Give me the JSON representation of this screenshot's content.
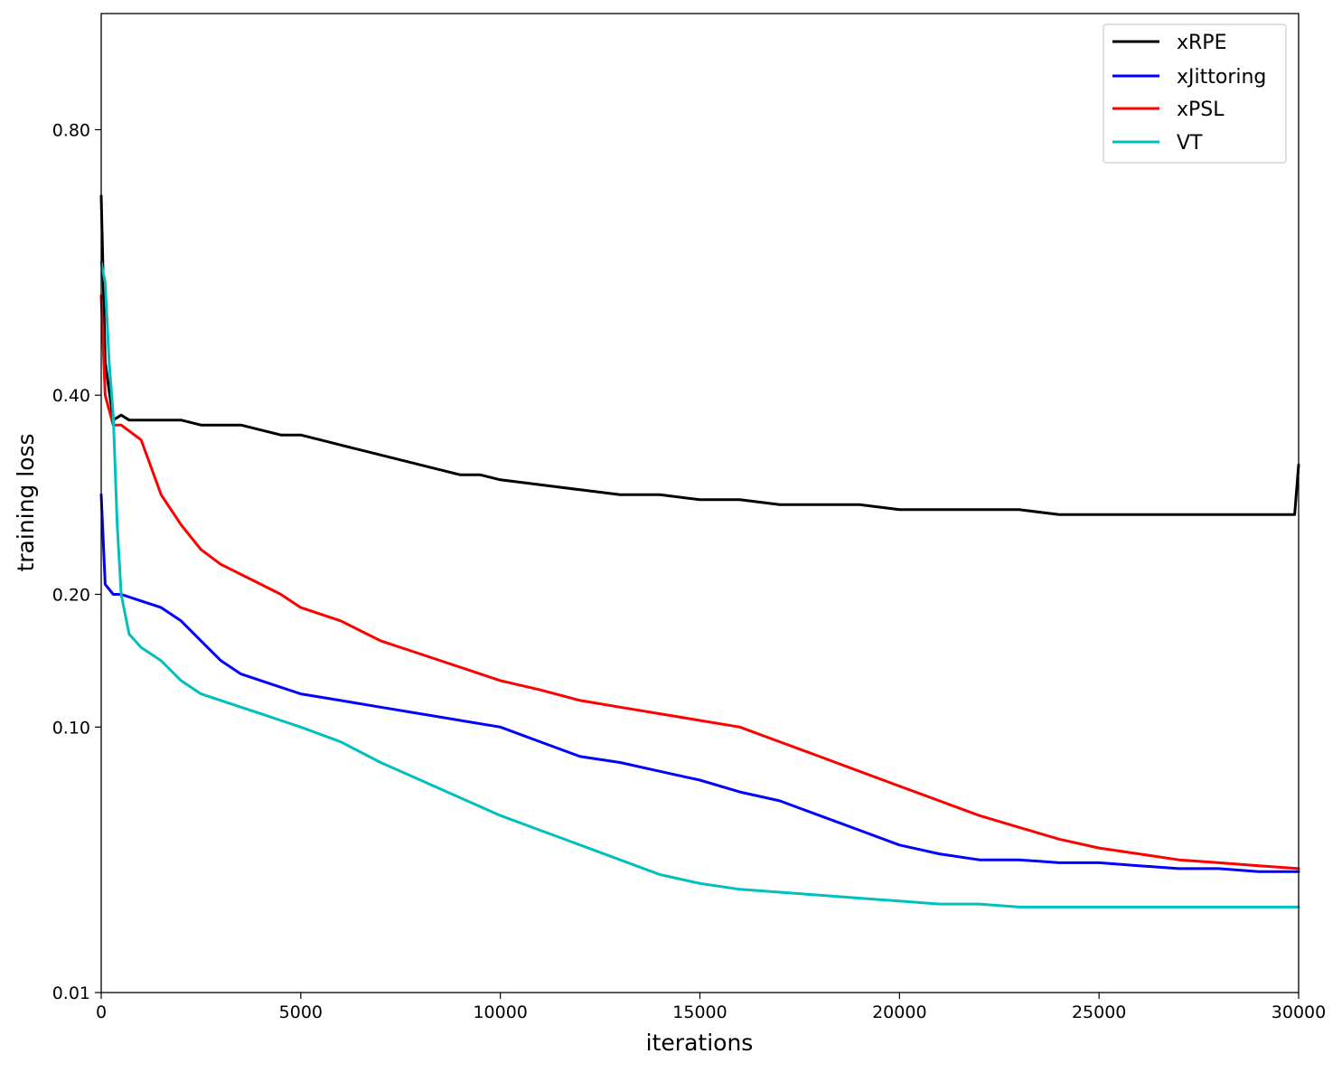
{
  "chart_data": {
    "type": "line",
    "title": "",
    "xlabel": "iterations",
    "ylabel": "training loss",
    "xlim": [
      0,
      30000
    ],
    "y_scale": "piecewise-linear",
    "y_scale_breaks": [
      [
        0.01,
        0.0
      ],
      [
        0.1,
        0.5
      ],
      [
        0.2,
        0.75
      ],
      [
        0.4,
        1.125
      ],
      [
        0.8,
        1.625
      ]
    ],
    "ylim": [
      0.01,
      0.975
    ],
    "x_ticks": [
      0,
      5000,
      10000,
      15000,
      20000,
      25000,
      30000
    ],
    "x_tick_labels": [
      "0",
      "5000",
      "10000",
      "15000",
      "20000",
      "25000",
      "30000"
    ],
    "y_ticks": [
      0.01,
      0.1,
      0.2,
      0.4,
      0.8
    ],
    "y_tick_labels": [
      "0.01",
      "0.10",
      "0.20",
      "0.40",
      "0.80"
    ],
    "grid": false,
    "legend_position": "top-right",
    "series": [
      {
        "name": "xRPE",
        "color": "#000000",
        "x": [
          0,
          100,
          300,
          500,
          700,
          1000,
          1500,
          2000,
          2500,
          3000,
          3500,
          4000,
          4500,
          5000,
          5500,
          6000,
          6500,
          7000,
          7500,
          8000,
          8500,
          9000,
          9500,
          10000,
          11000,
          12000,
          13000,
          14000,
          15000,
          16000,
          17000,
          18000,
          19000,
          20000,
          21000,
          22000,
          23000,
          24000,
          25000,
          26000,
          27000,
          28000,
          29000,
          29900,
          30000
        ],
        "values": [
          0.7,
          0.45,
          0.375,
          0.38,
          0.375,
          0.375,
          0.375,
          0.375,
          0.37,
          0.37,
          0.37,
          0.365,
          0.36,
          0.36,
          0.355,
          0.35,
          0.345,
          0.34,
          0.335,
          0.33,
          0.325,
          0.32,
          0.32,
          0.315,
          0.31,
          0.305,
          0.3,
          0.3,
          0.295,
          0.295,
          0.29,
          0.29,
          0.29,
          0.285,
          0.285,
          0.285,
          0.285,
          0.28,
          0.28,
          0.28,
          0.28,
          0.28,
          0.28,
          0.28,
          0.33
        ]
      },
      {
        "name": "xJittoring",
        "color": "#0000ff",
        "x": [
          0,
          100,
          300,
          500,
          1000,
          1500,
          2000,
          2500,
          3000,
          3500,
          4000,
          4500,
          5000,
          6000,
          7000,
          8000,
          9000,
          10000,
          11000,
          12000,
          13000,
          14000,
          15000,
          16000,
          17000,
          18000,
          19000,
          20000,
          21000,
          22000,
          23000,
          24000,
          25000,
          26000,
          27000,
          28000,
          29000,
          30000
        ],
        "values": [
          0.3,
          0.21,
          0.2,
          0.2,
          0.195,
          0.19,
          0.18,
          0.165,
          0.15,
          0.14,
          0.135,
          0.13,
          0.125,
          0.12,
          0.115,
          0.11,
          0.105,
          0.1,
          0.095,
          0.09,
          0.088,
          0.085,
          0.082,
          0.078,
          0.075,
          0.07,
          0.065,
          0.06,
          0.057,
          0.055,
          0.055,
          0.054,
          0.054,
          0.053,
          0.052,
          0.052,
          0.051,
          0.051
        ]
      },
      {
        "name": "xPSL",
        "color": "#ff0000",
        "x": [
          0,
          100,
          300,
          500,
          1000,
          1500,
          2000,
          2500,
          3000,
          3500,
          4000,
          4500,
          5000,
          6000,
          7000,
          8000,
          9000,
          10000,
          11000,
          12000,
          13000,
          14000,
          15000,
          16000,
          17000,
          18000,
          19000,
          20000,
          21000,
          22000,
          23000,
          24000,
          25000,
          26000,
          27000,
          28000,
          29000,
          30000
        ],
        "values": [
          0.55,
          0.4,
          0.37,
          0.37,
          0.355,
          0.3,
          0.27,
          0.245,
          0.23,
          0.22,
          0.21,
          0.2,
          0.19,
          0.18,
          0.165,
          0.155,
          0.145,
          0.135,
          0.128,
          0.12,
          0.115,
          0.11,
          0.105,
          0.1,
          0.095,
          0.09,
          0.085,
          0.08,
          0.075,
          0.07,
          0.066,
          0.062,
          0.059,
          0.057,
          0.055,
          0.054,
          0.053,
          0.052
        ]
      },
      {
        "name": "VT",
        "color": "#00bfbf",
        "x": [
          0,
          100,
          200,
          300,
          400,
          500,
          700,
          1000,
          1500,
          2000,
          2500,
          3000,
          3500,
          4000,
          4500,
          5000,
          6000,
          7000,
          8000,
          9000,
          10000,
          11000,
          12000,
          13000,
          14000,
          15000,
          16000,
          17000,
          18000,
          19000,
          20000,
          21000,
          22000,
          23000,
          24000,
          25000,
          26000,
          27000,
          28000,
          29000,
          30000
        ],
        "values": [
          0.6,
          0.57,
          0.45,
          0.38,
          0.27,
          0.2,
          0.17,
          0.16,
          0.15,
          0.135,
          0.125,
          0.12,
          0.115,
          0.11,
          0.105,
          0.1,
          0.095,
          0.088,
          0.082,
          0.076,
          0.07,
          0.065,
          0.06,
          0.055,
          0.05,
          0.047,
          0.045,
          0.044,
          0.043,
          0.042,
          0.041,
          0.04,
          0.04,
          0.039,
          0.039,
          0.039,
          0.039,
          0.039,
          0.039,
          0.039,
          0.039
        ]
      }
    ]
  }
}
